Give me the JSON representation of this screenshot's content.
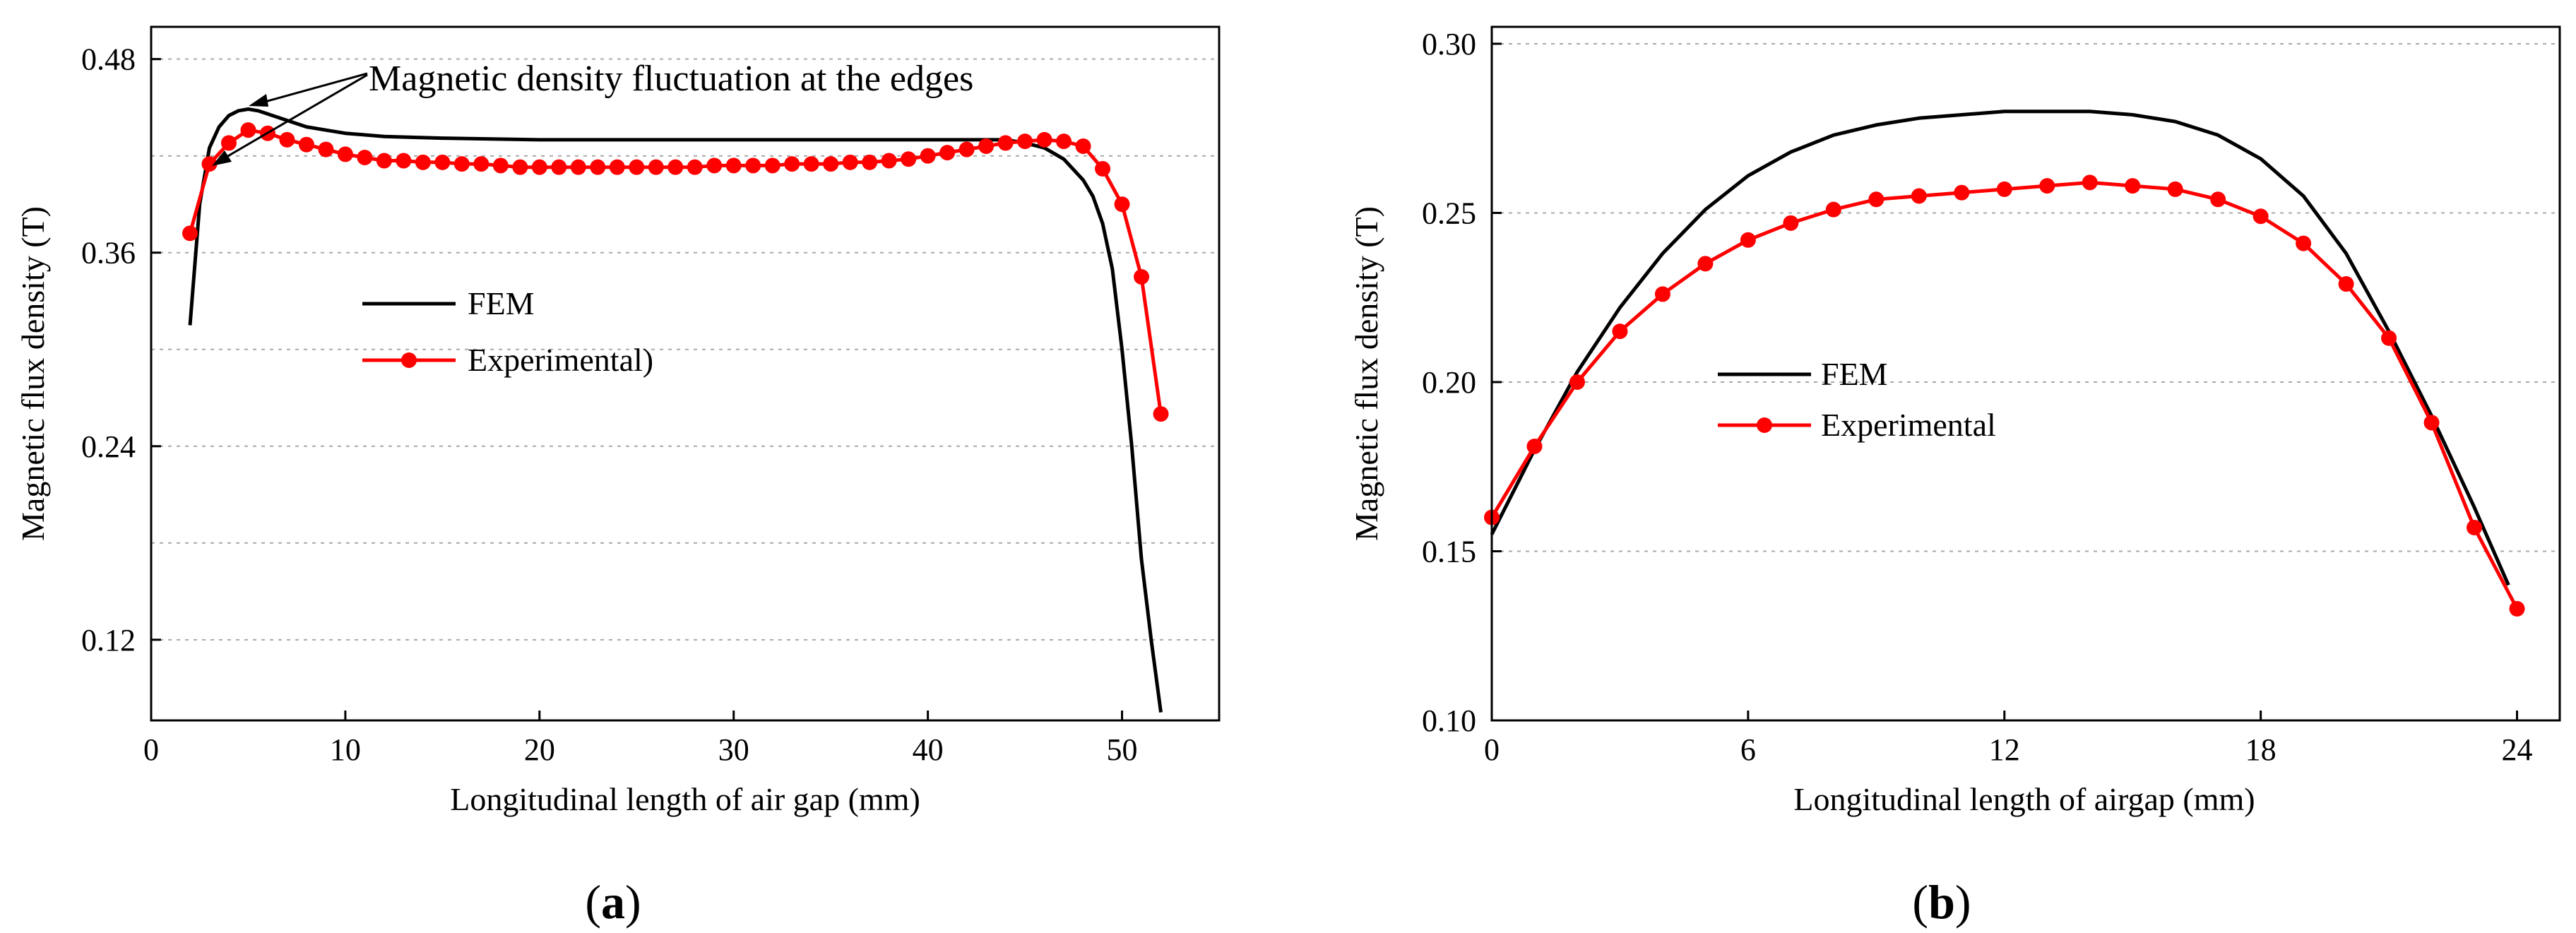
{
  "chart_data": [
    {
      "id": "a",
      "type": "line",
      "panel_label": "a",
      "title": "",
      "xlabel": "Longitudinal length of air gap (mm)",
      "ylabel": "Magnetic flux density (T)",
      "xlim": [
        0,
        55
      ],
      "ylim": [
        0.07,
        0.5
      ],
      "xticks": [
        0,
        10,
        20,
        30,
        40,
        50
      ],
      "xtick_labels": [
        "0",
        "10",
        "20",
        "30",
        "40",
        "50"
      ],
      "yticks": [
        0.12,
        0.24,
        0.36,
        0.48
      ],
      "ytick_labels": [
        "0.12",
        "0.24",
        "0.36",
        "0.48"
      ],
      "grid_major": [
        0.12,
        0.24,
        0.36,
        0.48
      ],
      "grid_minor": [
        0.18,
        0.3,
        0.42
      ],
      "legend_position": "center-left",
      "annotation": "Magnetic density fluctuation at the edges",
      "series": [
        {
          "name": "FEM",
          "color": "#000000",
          "marker": "none",
          "x": [
            2,
            2.5,
            3,
            3.5,
            4,
            4.5,
            5,
            5.5,
            6,
            7,
            8,
            9,
            10,
            12,
            15,
            20,
            30,
            40,
            44,
            45,
            46,
            47,
            48,
            48.5,
            49,
            49.5,
            50,
            50.5,
            51,
            51.5,
            52
          ],
          "y": [
            0.315,
            0.39,
            0.425,
            0.438,
            0.445,
            0.448,
            0.449,
            0.448,
            0.446,
            0.442,
            0.438,
            0.436,
            0.434,
            0.432,
            0.431,
            0.43,
            0.43,
            0.43,
            0.43,
            0.428,
            0.425,
            0.418,
            0.405,
            0.395,
            0.378,
            0.35,
            0.3,
            0.24,
            0.17,
            0.12,
            0.075
          ]
        },
        {
          "name": "Experimental)",
          "color": "#ff0000",
          "marker": "circle",
          "x": [
            2,
            3,
            4,
            5,
            6,
            7,
            8,
            9,
            10,
            11,
            12,
            13,
            14,
            15,
            16,
            17,
            18,
            19,
            20,
            21,
            22,
            23,
            24,
            25,
            26,
            27,
            28,
            29,
            30,
            31,
            32,
            33,
            34,
            35,
            36,
            37,
            38,
            39,
            40,
            41,
            42,
            43,
            44,
            45,
            46,
            47,
            48,
            49,
            50,
            51,
            52
          ],
          "y": [
            0.372,
            0.415,
            0.428,
            0.436,
            0.434,
            0.43,
            0.427,
            0.424,
            0.421,
            0.419,
            0.417,
            0.417,
            0.416,
            0.416,
            0.415,
            0.415,
            0.414,
            0.413,
            0.413,
            0.413,
            0.413,
            0.413,
            0.413,
            0.413,
            0.413,
            0.413,
            0.413,
            0.414,
            0.414,
            0.414,
            0.414,
            0.415,
            0.415,
            0.415,
            0.416,
            0.416,
            0.417,
            0.418,
            0.42,
            0.422,
            0.424,
            0.426,
            0.428,
            0.429,
            0.43,
            0.429,
            0.426,
            0.412,
            0.39,
            0.345,
            0.26
          ]
        }
      ]
    },
    {
      "id": "b",
      "type": "line",
      "panel_label": "b",
      "title": "",
      "xlabel": "Longitudinal length of airgap (mm)",
      "ylabel": "Magnetic flux density (T)",
      "xlim": [
        0,
        25
      ],
      "ylim": [
        0.1,
        0.305
      ],
      "xticks": [
        0,
        6,
        12,
        18,
        24
      ],
      "xtick_labels": [
        "0",
        "6",
        "12",
        "18",
        "24"
      ],
      "yticks": [
        0.1,
        0.15,
        0.2,
        0.25,
        0.3
      ],
      "ytick_labels": [
        "0.10",
        "0.15",
        "0.20",
        "0.25",
        "0.30"
      ],
      "grid_major": [
        0.15,
        0.2,
        0.25,
        0.3
      ],
      "legend_position": "center-left",
      "series": [
        {
          "name": "FEM",
          "color": "#000000",
          "marker": "none",
          "x": [
            0,
            1,
            2,
            3,
            4,
            5,
            6,
            7,
            8,
            9,
            10,
            11,
            12,
            13,
            14,
            15,
            16,
            17,
            18,
            19,
            20,
            21,
            22,
            23,
            23.8
          ],
          "y": [
            0.155,
            0.18,
            0.203,
            0.222,
            0.238,
            0.251,
            0.261,
            0.268,
            0.273,
            0.276,
            0.278,
            0.279,
            0.28,
            0.28,
            0.28,
            0.279,
            0.277,
            0.273,
            0.266,
            0.255,
            0.238,
            0.215,
            0.19,
            0.163,
            0.14
          ]
        },
        {
          "name": "Experimental",
          "color": "#ff0000",
          "marker": "circle",
          "x": [
            0,
            1,
            2,
            3,
            4,
            5,
            6,
            7,
            8,
            9,
            10,
            11,
            12,
            13,
            14,
            15,
            16,
            17,
            18,
            19,
            20,
            21,
            22,
            23,
            24
          ],
          "y": [
            0.16,
            0.181,
            0.2,
            0.215,
            0.226,
            0.235,
            0.242,
            0.247,
            0.251,
            0.254,
            0.255,
            0.256,
            0.257,
            0.258,
            0.259,
            0.258,
            0.257,
            0.254,
            0.249,
            0.241,
            0.229,
            0.213,
            0.188,
            0.157,
            0.133
          ]
        }
      ]
    }
  ]
}
